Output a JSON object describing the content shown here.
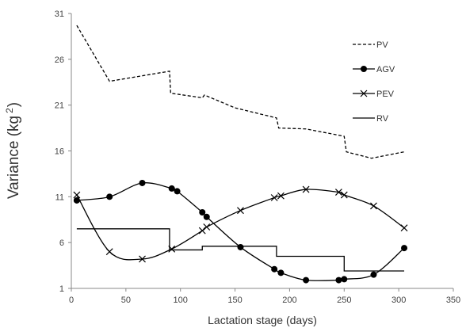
{
  "chart_data": {
    "type": "line",
    "title": "",
    "xlabel": "Lactation stage (days)",
    "ylabel_main": "Variance (kg",
    "ylabel_sup": "2",
    "ylabel_close": ")",
    "xlim": [
      0,
      350
    ],
    "ylim": [
      1,
      31
    ],
    "xticks": [
      0,
      50,
      100,
      150,
      200,
      250,
      300,
      350
    ],
    "yticks": [
      1,
      6,
      11,
      16,
      21,
      26,
      31
    ],
    "grid": false,
    "legend_position": "top-right",
    "series": [
      {
        "name": "PV",
        "style": "dashed",
        "marker": "none",
        "x": [
          5,
          35,
          90,
          91,
          120,
          122,
          150,
          188,
          190,
          215,
          250,
          252,
          275,
          305
        ],
        "y": [
          29.7,
          23.6,
          24.7,
          22.3,
          21.8,
          22.1,
          20.7,
          19.6,
          18.5,
          18.4,
          17.6,
          15.9,
          15.2,
          15.9
        ]
      },
      {
        "name": "AGV",
        "style": "solid",
        "marker": "circle",
        "x": [
          5,
          35,
          65,
          92,
          97,
          120,
          124,
          155,
          186,
          192,
          215,
          245,
          250,
          277,
          305
        ],
        "y": [
          10.6,
          11.0,
          12.5,
          11.9,
          11.6,
          9.3,
          8.8,
          5.5,
          3.1,
          2.7,
          1.9,
          1.9,
          2.0,
          2.5,
          5.4
        ]
      },
      {
        "name": "PEV",
        "style": "solid",
        "marker": "x",
        "x": [
          5,
          35,
          65,
          92,
          120,
          124,
          155,
          186,
          192,
          215,
          245,
          250,
          277,
          305
        ],
        "y": [
          11.2,
          5.0,
          4.2,
          5.3,
          7.3,
          7.7,
          9.5,
          10.9,
          11.1,
          11.8,
          11.5,
          11.2,
          10.0,
          7.6
        ]
      },
      {
        "name": "RV",
        "style": "solid",
        "marker": "none",
        "x": [
          5,
          90,
          90,
          120,
          120,
          188,
          188,
          250,
          250,
          305
        ],
        "y": [
          7.5,
          7.5,
          5.2,
          5.2,
          5.6,
          5.6,
          4.5,
          4.5,
          2.9,
          2.9
        ]
      }
    ],
    "colors": {
      "series": "#000000",
      "axis": "#888888",
      "text": "#444444"
    }
  }
}
